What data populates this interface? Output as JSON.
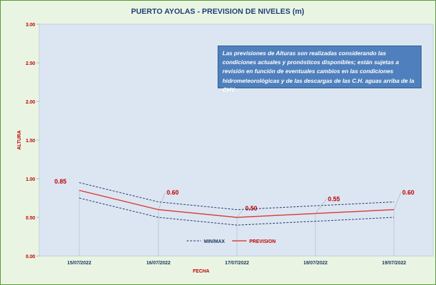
{
  "chart_data": {
    "type": "line",
    "title": "PUERTO AYOLAS - PREVISION DE NIVELES (m)",
    "xlabel": "FECHA",
    "ylabel": "ALTURA",
    "categories": [
      "15/07/2022",
      "16/07/2022",
      "17/07/2022",
      "18/07/2022",
      "19/07/2022"
    ],
    "ylim": [
      0,
      3
    ],
    "yticks": [
      "0.00",
      "0.50",
      "1.00",
      "1.50",
      "2.00",
      "2.50",
      "3.00"
    ],
    "series": [
      {
        "name": "PREVISION",
        "values": [
          0.85,
          0.6,
          0.5,
          0.55,
          0.6
        ],
        "labels": [
          "0.85",
          "0.60",
          "0.50",
          "0.55",
          "0.60"
        ]
      },
      {
        "name": "MIN/MAX",
        "role": "max",
        "values": [
          0.95,
          0.7,
          0.6,
          0.65,
          0.7
        ]
      },
      {
        "name": "MIN/MAX",
        "role": "min",
        "values": [
          0.75,
          0.5,
          0.4,
          0.45,
          0.5
        ]
      }
    ],
    "legend": [
      "MIN/MAX",
      "PREVISION"
    ],
    "legend_position": "bottom-center",
    "grid": false,
    "annotation": "Las previsiones de Alturas son realizadas considerando las condiciones actuales y pronósticos disponibles; están sujetas a revisión en función de eventuales cambios en las condiciones hidrometeorológicas y de las descargas de las C.H. aguas arriba de la CHY."
  },
  "colors": {
    "frame_bg": "#e9f5e2",
    "plot_bg": "#dce6f2",
    "title": "#1f3f7a",
    "axis_labels": "#c00000",
    "prevision": "#d9413a",
    "minmax": "#1f3864",
    "note_bg": "#4f80bd"
  }
}
